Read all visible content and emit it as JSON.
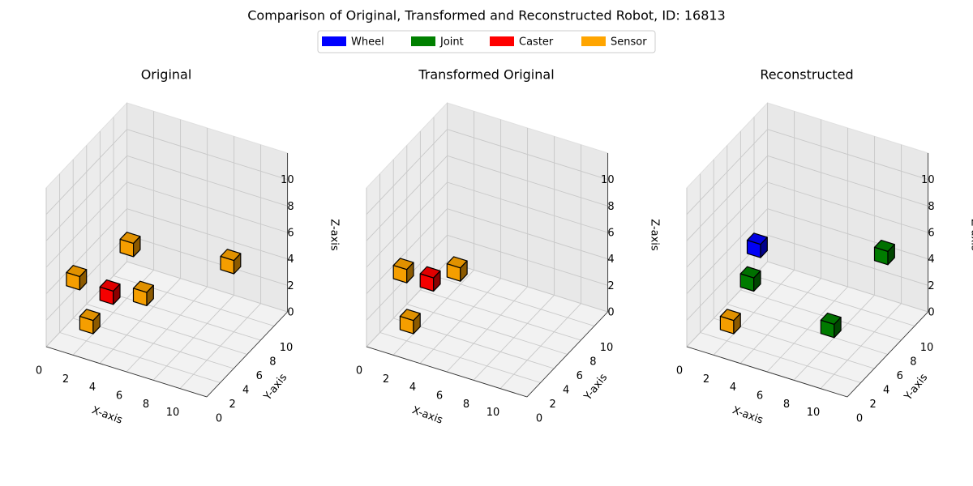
{
  "chart_data": {
    "type": "voxel3d",
    "title": "Comparison of Original, Transformed and Reconstructed Robot, ID: 16813",
    "legend": {
      "position": "upper center",
      "items": [
        {
          "name": "Wheel",
          "color": "#0000ff"
        },
        {
          "name": "Joint",
          "color": "#008000"
        },
        {
          "name": "Caster",
          "color": "#ff0000"
        },
        {
          "name": "Sensor",
          "color": "#ffa500"
        }
      ]
    },
    "panels": [
      {
        "title": "Original",
        "xlabel": "X-axis",
        "ylabel": "Y-axis",
        "zlabel": "Z-axis",
        "xlim": [
          0,
          12
        ],
        "ylim": [
          0,
          12
        ],
        "zlim": [
          0,
          12
        ],
        "xticks": [
          0,
          2,
          4,
          6,
          8,
          10
        ],
        "yticks": [
          0,
          2,
          4,
          6,
          8,
          10
        ],
        "zticks": [
          0,
          2,
          4,
          6,
          8,
          10
        ],
        "series": [
          {
            "name": "Sensor",
            "x": [
              1,
              0,
              4,
              2,
              8
            ],
            "y": [
              3,
              3,
              5,
              7,
              10
            ],
            "z": [
              0,
              3,
              2,
              4,
              3
            ]
          },
          {
            "name": "Caster",
            "x": [
              2
            ],
            "y": [
              4
            ],
            "z": [
              2
            ]
          }
        ]
      },
      {
        "title": "Transformed Original",
        "xlabel": "X-axis",
        "ylabel": "Y-axis",
        "zlabel": "Z-axis",
        "xlim": [
          0,
          12
        ],
        "ylim": [
          0,
          12
        ],
        "zlim": [
          0,
          12
        ],
        "xticks": [
          0,
          2,
          4,
          6,
          8,
          10
        ],
        "yticks": [
          0,
          2,
          4,
          6,
          8,
          10
        ],
        "zticks": [
          0,
          2,
          4,
          6,
          8,
          10
        ],
        "series": [
          {
            "name": "Sensor",
            "x": [
              1,
              0,
              3
            ],
            "y": [
              3,
              4,
              6
            ],
            "z": [
              0,
              3,
              3
            ]
          },
          {
            "name": "Caster",
            "x": [
              2
            ],
            "y": [
              4
            ],
            "z": [
              3
            ]
          }
        ]
      },
      {
        "title": "Reconstructed",
        "xlabel": "X-axis",
        "ylabel": "Y-axis",
        "zlabel": "Z-axis",
        "xlim": [
          0,
          12
        ],
        "ylim": [
          0,
          12
        ],
        "zlim": [
          0,
          12
        ],
        "xticks": [
          0,
          2,
          4,
          6,
          8,
          10
        ],
        "yticks": [
          0,
          2,
          4,
          6,
          8,
          10
        ],
        "zticks": [
          0,
          2,
          4,
          6,
          8,
          10
        ],
        "series": [
          {
            "name": "Sensor",
            "x": [
              1
            ],
            "y": [
              3
            ],
            "z": [
              0
            ]
          },
          {
            "name": "Wheel",
            "x": [
              2
            ],
            "y": [
              5
            ],
            "z": [
              5
            ]
          },
          {
            "name": "Joint",
            "x": [
              2,
              7,
              9
            ],
            "y": [
              4,
              6,
              10
            ],
            "z": [
              3,
              0,
              4
            ]
          }
        ]
      }
    ]
  }
}
